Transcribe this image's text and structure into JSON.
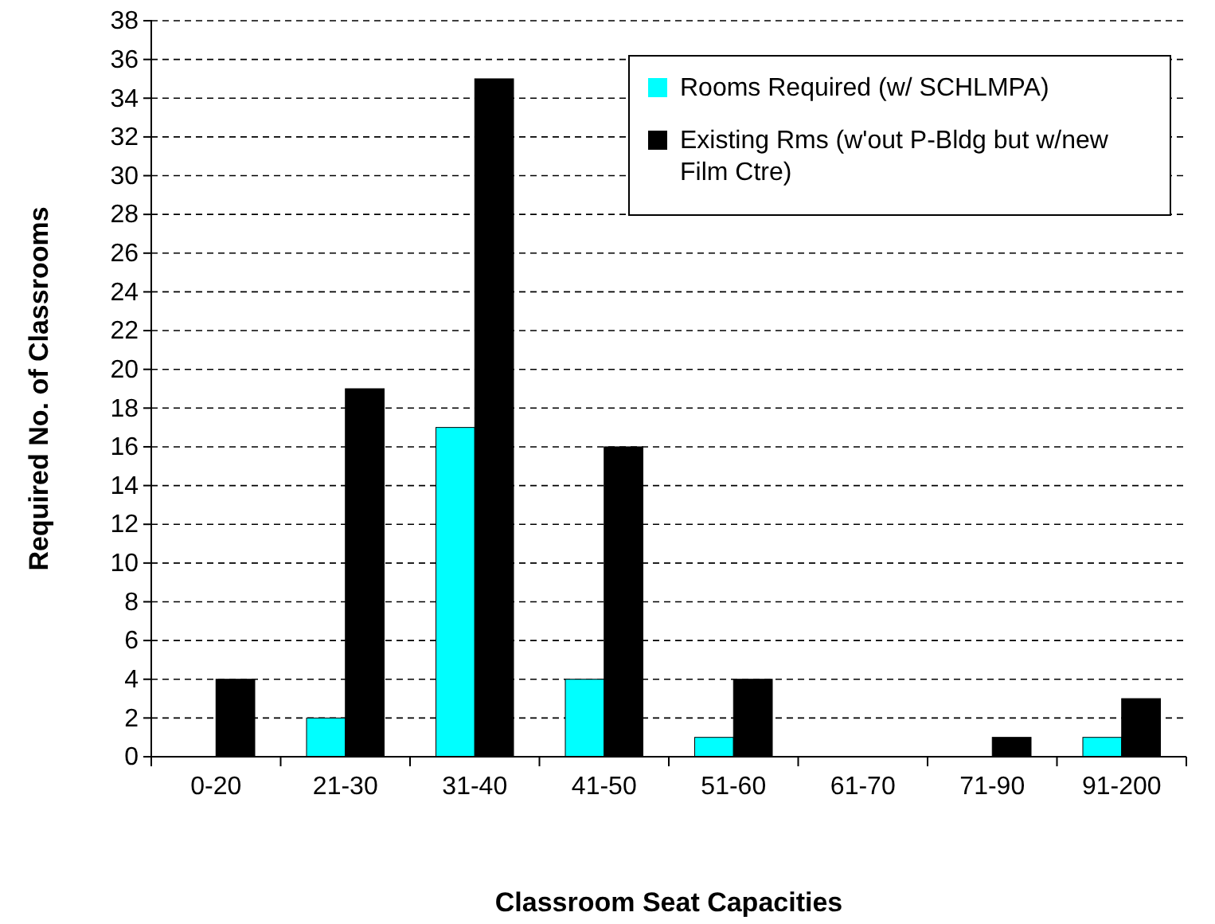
{
  "chart_data": {
    "type": "bar",
    "xlabel": "Classroom Seat Capacities",
    "ylabel": "Required No. of Classrooms",
    "categories": [
      "0-20",
      "21-30",
      "31-40",
      "41-50",
      "51-60",
      "61-70",
      "71-90",
      "91-200"
    ],
    "series": [
      {
        "name": "Rooms Required (w/ SCHLMPA)",
        "color": "#00ffff",
        "values": [
          0,
          2,
          17,
          4,
          1,
          0,
          0,
          1
        ]
      },
      {
        "name": "Existing Rms (w'out P-Bldg but w/new Film Ctre)",
        "color": "#000000",
        "values": [
          4,
          19,
          35,
          16,
          4,
          0,
          1,
          3
        ]
      }
    ],
    "ylim": [
      0,
      38
    ],
    "yticks": [
      0,
      2,
      4,
      6,
      8,
      10,
      12,
      14,
      16,
      18,
      20,
      22,
      24,
      26,
      28,
      30,
      32,
      34,
      36,
      38
    ],
    "grid": "y",
    "legend": "top right"
  }
}
